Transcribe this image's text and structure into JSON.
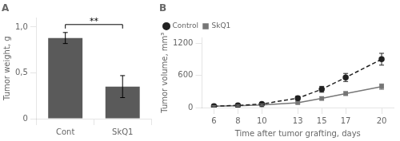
{
  "chart_data": [
    {
      "type": "bar",
      "title": "A",
      "categories": [
        "Cont",
        "SkQ1"
      ],
      "values": [
        0.88,
        0.35
      ],
      "errors": [
        0.06,
        0.12
      ],
      "color": "#5a5a5a",
      "ylabel": "Tumor weight, g",
      "ylim": [
        0,
        1.1
      ],
      "yticks": [
        0,
        {
          "value": 0.5,
          "label": "0,5"
        },
        {
          "value": 1.0,
          "label": "1,0"
        }
      ],
      "annotations": [
        {
          "text": "**",
          "between": [
            "Cont",
            "SkQ1"
          ]
        }
      ],
      "grid": false
    },
    {
      "type": "line",
      "title": "B",
      "x": [
        6,
        8,
        10,
        13,
        15,
        17,
        20
      ],
      "series": [
        {
          "name": "Control",
          "color": "#222222",
          "marker": "o",
          "line_style": "dashed",
          "values": [
            25,
            40,
            65,
            175,
            340,
            560,
            900
          ],
          "errors": [
            10,
            15,
            20,
            35,
            55,
            75,
            110
          ]
        },
        {
          "name": "SkQ1",
          "color": "#777777",
          "marker": "s",
          "line_style": "solid",
          "values": [
            25,
            35,
            50,
            90,
            170,
            260,
            390
          ],
          "errors": [
            10,
            12,
            15,
            20,
            30,
            35,
            50
          ]
        }
      ],
      "xlabel": "Time after tumor grafting, days",
      "ylabel": "Tumor volume, mm³",
      "xlim": [
        5,
        21
      ],
      "xticks": [
        6,
        8,
        10,
        13,
        15,
        17,
        20
      ],
      "ylim": [
        0,
        1300
      ],
      "yticks": [
        0,
        600,
        1200
      ],
      "legend": "upper left",
      "grid": false
    }
  ]
}
